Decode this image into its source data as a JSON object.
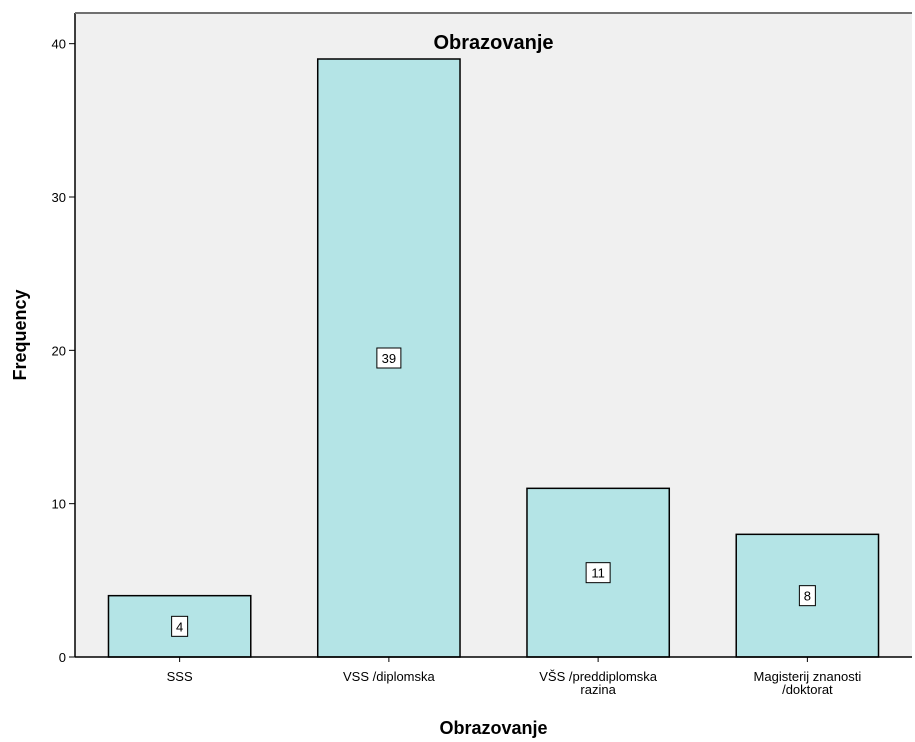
{
  "colors": {
    "plot_background": "#f0f0f0",
    "bar_fill": "#b4e4e6",
    "bar_stroke": "#000000",
    "axis": "#000000"
  },
  "chart_data": {
    "type": "bar",
    "title": "Obrazovanje",
    "xlabel": "Obrazovanje",
    "ylabel": "Frequency",
    "categories": [
      [
        "SSS"
      ],
      [
        "VSS /diplomska"
      ],
      [
        "VŠS /preddiplomska",
        "razina"
      ],
      [
        "Magisterij znanosti",
        "/doktorat"
      ]
    ],
    "values": [
      4,
      39,
      11,
      8
    ],
    "data_labels": [
      "4",
      "39",
      "11",
      "8"
    ],
    "ylim": [
      0,
      42
    ],
    "yticks": [
      0,
      10,
      20,
      30,
      40
    ],
    "grid": false,
    "legend": "none"
  }
}
